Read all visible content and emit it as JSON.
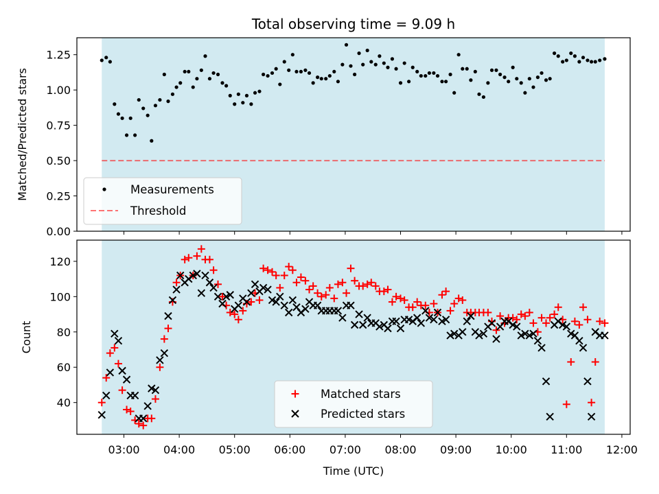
{
  "title": "Total observing time = 9.09 h",
  "colors": {
    "night_band": "#add8e6",
    "measurement": "#000000",
    "threshold": "#ff0000",
    "matched": "#ff0000",
    "predicted": "#000000"
  },
  "chart_data": [
    {
      "type": "scatter",
      "ylabel": "Matched/Predicted stars",
      "ylim": [
        0,
        1.37
      ],
      "yticks": [
        "0.00",
        "0.25",
        "0.50",
        "0.75",
        "1.00",
        "1.25"
      ],
      "xlim": [
        2.15,
        12.15
      ],
      "shaded_span": [
        2.6,
        11.69
      ],
      "threshold": 0.5,
      "legend": {
        "position": "lower-left",
        "entries": [
          "Measurements",
          "Threshold"
        ]
      },
      "series": [
        {
          "name": "Measurements",
          "x": [
            2.6,
            2.68,
            2.75,
            2.83,
            2.9,
            2.97,
            3.05,
            3.12,
            3.2,
            3.27,
            3.35,
            3.43,
            3.5,
            3.57,
            3.65,
            3.73,
            3.8,
            3.88,
            3.95,
            4.02,
            4.1,
            4.17,
            4.25,
            4.32,
            4.4,
            4.47,
            4.55,
            4.62,
            4.7,
            4.78,
            4.85,
            4.92,
            5.0,
            5.07,
            5.15,
            5.22,
            5.3,
            5.37,
            5.45,
            5.52,
            5.6,
            5.68,
            5.75,
            5.82,
            5.9,
            5.98,
            6.05,
            6.12,
            6.2,
            6.28,
            6.35,
            6.42,
            6.5,
            6.57,
            6.65,
            6.72,
            6.8,
            6.87,
            6.95,
            7.02,
            7.1,
            7.17,
            7.25,
            7.32,
            7.4,
            7.47,
            7.55,
            7.62,
            7.7,
            7.77,
            7.85,
            7.92,
            8.0,
            8.07,
            8.15,
            8.22,
            8.3,
            8.37,
            8.45,
            8.52,
            8.6,
            8.67,
            8.75,
            8.82,
            8.9,
            8.97,
            9.05,
            9.12,
            9.2,
            9.27,
            9.35,
            9.42,
            9.5,
            9.58,
            9.65,
            9.73,
            9.8,
            9.88,
            9.95,
            10.03,
            10.1,
            10.18,
            10.25,
            10.33,
            10.4,
            10.48,
            10.55,
            10.63,
            10.7,
            10.78,
            10.85,
            10.93,
            11.0,
            11.08,
            11.15,
            11.23,
            11.3,
            11.38,
            11.45,
            11.52,
            11.6,
            11.69
          ],
          "y": [
            1.21,
            1.23,
            1.2,
            0.9,
            0.83,
            0.8,
            0.68,
            0.8,
            0.68,
            0.93,
            0.87,
            0.82,
            0.64,
            0.89,
            0.93,
            1.11,
            0.92,
            0.97,
            1.02,
            1.05,
            1.13,
            1.13,
            1.02,
            1.08,
            1.14,
            1.24,
            1.08,
            1.12,
            1.11,
            1.05,
            1.03,
            0.96,
            0.9,
            0.97,
            0.91,
            0.96,
            0.9,
            0.98,
            0.99,
            1.11,
            1.1,
            1.12,
            1.15,
            1.04,
            1.2,
            1.14,
            1.25,
            1.13,
            1.13,
            1.14,
            1.12,
            1.05,
            1.09,
            1.08,
            1.08,
            1.1,
            1.13,
            1.06,
            1.18,
            1.32,
            1.17,
            1.11,
            1.26,
            1.18,
            1.28,
            1.2,
            1.18,
            1.24,
            1.19,
            1.16,
            1.22,
            1.15,
            1.05,
            1.19,
            1.06,
            1.16,
            1.13,
            1.1,
            1.1,
            1.12,
            1.12,
            1.1,
            1.06,
            1.06,
            1.11,
            0.98,
            1.25,
            1.15,
            1.15,
            1.07,
            1.13,
            0.97,
            0.95,
            1.05,
            1.14,
            1.14,
            1.11,
            1.09,
            1.06,
            1.16,
            1.08,
            1.05,
            0.98,
            1.08,
            1.02,
            1.09,
            1.12,
            1.07,
            1.08,
            1.26,
            1.24,
            1.2,
            1.21,
            1.26,
            1.24,
            1.2,
            1.23,
            1.21,
            1.2,
            1.2,
            1.21,
            1.22
          ]
        },
        {
          "name": "Threshold",
          "kind": "hline",
          "y": 0.5
        }
      ]
    },
    {
      "type": "scatter",
      "xlabel": "Time (UTC)",
      "ylabel": "Count",
      "xlim": [
        2.15,
        12.15
      ],
      "ylim": [
        22,
        132
      ],
      "yticks": [
        "40",
        "60",
        "80",
        "100",
        "120"
      ],
      "xticks": [
        "03:00",
        "04:00",
        "05:00",
        "06:00",
        "07:00",
        "08:00",
        "09:00",
        "10:00",
        "11:00",
        "12:00"
      ],
      "shaded_span": [
        2.6,
        11.69
      ],
      "legend": {
        "position": "lower-center",
        "entries": [
          "Matched stars",
          "Predicted stars"
        ]
      },
      "series": [
        {
          "name": "Matched stars",
          "marker": "+",
          "x": [
            2.6,
            2.68,
            2.75,
            2.83,
            2.9,
            2.97,
            3.05,
            3.12,
            3.2,
            3.27,
            3.35,
            3.43,
            3.5,
            3.57,
            3.65,
            3.73,
            3.8,
            3.88,
            3.95,
            4.02,
            4.1,
            4.17,
            4.25,
            4.32,
            4.4,
            4.47,
            4.55,
            4.62,
            4.7,
            4.78,
            4.85,
            4.92,
            5.0,
            5.07,
            5.15,
            5.22,
            5.3,
            5.37,
            5.45,
            5.52,
            5.6,
            5.68,
            5.75,
            5.82,
            5.9,
            5.98,
            6.05,
            6.12,
            6.2,
            6.28,
            6.35,
            6.42,
            6.5,
            6.57,
            6.65,
            6.72,
            6.8,
            6.87,
            6.95,
            7.02,
            7.1,
            7.17,
            7.25,
            7.32,
            7.4,
            7.47,
            7.55,
            7.62,
            7.7,
            7.77,
            7.85,
            7.92,
            8.0,
            8.07,
            8.15,
            8.22,
            8.3,
            8.37,
            8.45,
            8.52,
            8.6,
            8.67,
            8.75,
            8.82,
            8.9,
            8.97,
            9.05,
            9.12,
            9.2,
            9.27,
            9.35,
            9.42,
            9.5,
            9.58,
            9.65,
            9.73,
            9.8,
            9.88,
            9.95,
            10.03,
            10.1,
            10.18,
            10.25,
            10.33,
            10.4,
            10.48,
            10.55,
            10.63,
            10.7,
            10.78,
            10.85,
            10.93,
            11.0,
            11.08,
            11.15,
            11.23,
            11.3,
            11.38,
            11.45,
            11.52,
            11.6,
            11.69
          ],
          "y": [
            40,
            54,
            68,
            71,
            62,
            47,
            36,
            35,
            30,
            28,
            27,
            31,
            31,
            42,
            60,
            76,
            82,
            97,
            108,
            112,
            121,
            122,
            112,
            123,
            127,
            121,
            121,
            115,
            107,
            100,
            95,
            91,
            90,
            87,
            92,
            96,
            97,
            102,
            98,
            116,
            115,
            114,
            112,
            105,
            112,
            117,
            115,
            108,
            111,
            109,
            104,
            106,
            102,
            100,
            101,
            105,
            99,
            107,
            108,
            102,
            116,
            109,
            106,
            106,
            107,
            108,
            106,
            103,
            103,
            104,
            97,
            100,
            99,
            98,
            94,
            94,
            97,
            95,
            95,
            91,
            96,
            91,
            101,
            103,
            92,
            96,
            99,
            98,
            91,
            91,
            91,
            91,
            91,
            91,
            86,
            81,
            89,
            85,
            88,
            88,
            87,
            90,
            89,
            91,
            85,
            80,
            88,
            85,
            88,
            90,
            94,
            87,
            39,
            63,
            86,
            84,
            94,
            87,
            40,
            63,
            86,
            85
          ]
        },
        {
          "name": "Predicted stars",
          "marker": "x",
          "x": [
            2.6,
            2.68,
            2.75,
            2.83,
            2.9,
            2.97,
            3.05,
            3.12,
            3.2,
            3.27,
            3.35,
            3.43,
            3.5,
            3.57,
            3.65,
            3.73,
            3.8,
            3.88,
            3.95,
            4.02,
            4.1,
            4.17,
            4.25,
            4.32,
            4.4,
            4.47,
            4.55,
            4.62,
            4.7,
            4.78,
            4.85,
            4.92,
            5.0,
            5.07,
            5.15,
            5.22,
            5.3,
            5.37,
            5.45,
            5.52,
            5.6,
            5.68,
            5.75,
            5.82,
            5.9,
            5.98,
            6.05,
            6.12,
            6.2,
            6.28,
            6.35,
            6.42,
            6.5,
            6.57,
            6.65,
            6.72,
            6.8,
            6.87,
            6.95,
            7.02,
            7.1,
            7.17,
            7.25,
            7.32,
            7.4,
            7.47,
            7.55,
            7.62,
            7.7,
            7.77,
            7.85,
            7.92,
            8.0,
            8.07,
            8.15,
            8.22,
            8.3,
            8.37,
            8.45,
            8.52,
            8.6,
            8.67,
            8.75,
            8.82,
            8.9,
            8.97,
            9.05,
            9.12,
            9.2,
            9.27,
            9.35,
            9.42,
            9.5,
            9.58,
            9.65,
            9.73,
            9.8,
            9.88,
            9.95,
            10.03,
            10.1,
            10.18,
            10.25,
            10.33,
            10.4,
            10.48,
            10.55,
            10.63,
            10.7,
            10.78,
            10.85,
            10.93,
            11.0,
            11.08,
            11.15,
            11.23,
            11.3,
            11.38,
            11.45,
            11.52,
            11.6,
            11.69
          ],
          "y": [
            33,
            44,
            57,
            79,
            75,
            58,
            53,
            44,
            44,
            31,
            31,
            38,
            48,
            47,
            64,
            68,
            89,
            98,
            104,
            112,
            108,
            110,
            112,
            113,
            102,
            112,
            108,
            105,
            100,
            96,
            100,
            101,
            93,
            95,
            99,
            97,
            102,
            107,
            103,
            105,
            104,
            98,
            97,
            100,
            95,
            91,
            98,
            94,
            91,
            93,
            97,
            95,
            95,
            92,
            92,
            92,
            92,
            92,
            88,
            95,
            95,
            84,
            90,
            84,
            88,
            85,
            85,
            83,
            84,
            82,
            86,
            86,
            82,
            87,
            87,
            86,
            88,
            85,
            92,
            88,
            87,
            91,
            86,
            87,
            78,
            79,
            78,
            80,
            86,
            89,
            80,
            78,
            79,
            83,
            85,
            76,
            83,
            86,
            86,
            84,
            83,
            78,
            79,
            78,
            79,
            75,
            71,
            52,
            32,
            84,
            86,
            84,
            83,
            79,
            78,
            75,
            71,
            52,
            32,
            80,
            78,
            78
          ]
        }
      ]
    }
  ]
}
